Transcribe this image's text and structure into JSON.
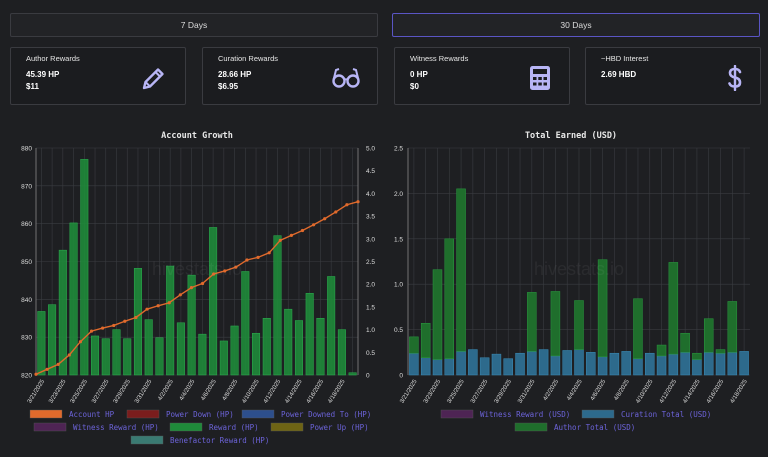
{
  "ranges": {
    "seven_days": "7 Days",
    "thirty_days": "30 Days",
    "active": "30 Days"
  },
  "cards": [
    {
      "title": "Author Rewards",
      "line1": "45.39 HP",
      "line2": "$11",
      "icon": "pencil-icon"
    },
    {
      "title": "Curation Rewards",
      "line1": "28.66 HP",
      "line2": "$6.95",
      "icon": "glasses-icon"
    },
    {
      "title": "Witness Rewards",
      "line1": "0 HP",
      "line2": "$0",
      "icon": "calculator-icon"
    },
    {
      "title": "~HBD Interest",
      "line1": "2.69 HBD",
      "line2": "",
      "icon": "dollar-icon"
    }
  ],
  "colors": {
    "accent": "#5a55c4",
    "icon": "#b8b5f5",
    "bar_green": "#1f8a3a",
    "line_orange": "#e06a2c",
    "bar_blue": "#2d6a8c",
    "legend_text": "#6c63d9"
  },
  "watermark": "hivestats.io",
  "chart_data": [
    {
      "type": "bar",
      "title": "Account Growth",
      "categories": [
        "3/21/2025",
        "3/22/2025",
        "3/23/2025",
        "3/24/2025",
        "3/25/2025",
        "3/26/2025",
        "3/27/2025",
        "3/28/2025",
        "3/29/2025",
        "3/30/2025",
        "3/31/2025",
        "4/1/2025",
        "4/2/2025",
        "4/3/2025",
        "4/4/2025",
        "4/5/2025",
        "4/6/2025",
        "4/7/2025",
        "4/8/2025",
        "4/9/2025",
        "4/10/2025",
        "4/11/2025",
        "4/12/2025",
        "4/13/2025",
        "4/14/2025",
        "4/15/2025",
        "4/16/2025",
        "4/17/2025",
        "4/18/2025",
        "4/19/2025"
      ],
      "tick_labels": [
        "3/21/2025",
        "3/23/2025",
        "3/25/2025",
        "3/27/2025",
        "3/29/2025",
        "3/31/2025",
        "4/2/2025",
        "4/4/2025",
        "4/6/2025",
        "4/8/2025",
        "4/10/2025",
        "4/12/2025",
        "4/14/2025",
        "4/16/2025",
        "4/18/2025"
      ],
      "ylim": [
        820,
        880
      ],
      "yticks": [
        820,
        830,
        840,
        850,
        860,
        870,
        880
      ],
      "y2lim": [
        0,
        5
      ],
      "y2ticks": [
        "0",
        "0.5",
        "1.0",
        "1.5",
        "2.0",
        "2.5",
        "3.0",
        "3.5",
        "4.0",
        "4.5",
        "5.0"
      ],
      "series": [
        {
          "name": "Account HP",
          "type": "line",
          "axis": "left",
          "color": "#e06a2c",
          "values": [
            820.2,
            821.5,
            822.8,
            825.3,
            828.8,
            831.6,
            832.4,
            833.1,
            834.2,
            835.2,
            837.4,
            838.3,
            839.1,
            841.2,
            843.1,
            844.2,
            846.7,
            847.5,
            848.5,
            850.4,
            851.1,
            852.3,
            855.6,
            856.9,
            858.2,
            859.7,
            861.3,
            863.1,
            865.0,
            865.8
          ]
        },
        {
          "name": "Reward (HP)",
          "type": "bar",
          "axis": "right",
          "color": "#1f8a3a",
          "values": [
            1.4,
            1.55,
            2.75,
            3.35,
            4.75,
            0.86,
            0.8,
            1.0,
            0.8,
            2.35,
            1.22,
            0.82,
            2.4,
            1.15,
            2.2,
            0.9,
            3.25,
            0.75,
            1.08,
            2.28,
            0.92,
            1.25,
            3.07,
            1.45,
            1.2,
            1.8,
            1.25,
            2.17,
            1.0,
            0.05
          ]
        }
      ],
      "legend": [
        "Account HP",
        "Power Down (HP)",
        "Power Downed To (HP)",
        "Witness Reward (HP)",
        "Reward (HP)",
        "Power Up (HP)",
        "Benefactor Reward (HP)"
      ],
      "legend_colors": [
        "#e06a2c",
        "#7a1d1d",
        "#2d4f8c",
        "#4e2454",
        "#1f8a3a",
        "#6e6414",
        "#3a7a72"
      ]
    },
    {
      "type": "bar",
      "title": "Total Earned (USD)",
      "categories": [
        "3/21/2025",
        "3/22/2025",
        "3/23/2025",
        "3/24/2025",
        "3/25/2025",
        "3/26/2025",
        "3/27/2025",
        "3/28/2025",
        "3/29/2025",
        "3/30/2025",
        "3/31/2025",
        "4/1/2025",
        "4/2/2025",
        "4/3/2025",
        "4/4/2025",
        "4/5/2025",
        "4/6/2025",
        "4/7/2025",
        "4/8/2025",
        "4/9/2025",
        "4/10/2025",
        "4/11/2025",
        "4/12/2025",
        "4/13/2025",
        "4/14/2025",
        "4/15/2025",
        "4/16/2025",
        "4/17/2025",
        "4/18/2025"
      ],
      "tick_labels": [
        "3/21/2025",
        "3/23/2025",
        "3/25/2025",
        "3/27/2025",
        "3/29/2025",
        "3/31/2025",
        "4/2/2025",
        "4/4/2025",
        "4/6/2025",
        "4/8/2025",
        "4/10/2025",
        "4/12/2025",
        "4/14/2025",
        "4/16/2025",
        "4/18/2025"
      ],
      "ylim": [
        0,
        2.5
      ],
      "yticks": [
        "0",
        "0.5",
        "1.0",
        "1.5",
        "2.0",
        "2.5"
      ],
      "stacked": true,
      "series": [
        {
          "name": "Curation Total (USD)",
          "color": "#2d6a8c",
          "values": [
            0.24,
            0.19,
            0.17,
            0.18,
            0.26,
            0.28,
            0.19,
            0.23,
            0.18,
            0.24,
            0.26,
            0.28,
            0.21,
            0.27,
            0.28,
            0.25,
            0.2,
            0.24,
            0.26,
            0.18,
            0.24,
            0.21,
            0.23,
            0.25,
            0.17,
            0.25,
            0.24,
            0.25,
            0.26
          ]
        },
        {
          "name": "Author Total (USD)",
          "color": "#1f6e2c",
          "values": [
            0.18,
            0.38,
            0.99,
            1.32,
            1.79,
            0.0,
            0.0,
            0.0,
            0.0,
            0.0,
            0.65,
            0.0,
            0.71,
            0.0,
            0.54,
            0.0,
            1.07,
            0.0,
            0.0,
            0.66,
            0.0,
            0.12,
            1.01,
            0.21,
            0.07,
            0.37,
            0.04,
            0.56,
            0.0
          ]
        }
      ],
      "legend": [
        "Witness Reward (USD)",
        "Curation Total (USD)",
        "Author Total (USD)"
      ],
      "legend_colors": [
        "#4e2454",
        "#2d6a8c",
        "#1f6e2c"
      ]
    }
  ]
}
